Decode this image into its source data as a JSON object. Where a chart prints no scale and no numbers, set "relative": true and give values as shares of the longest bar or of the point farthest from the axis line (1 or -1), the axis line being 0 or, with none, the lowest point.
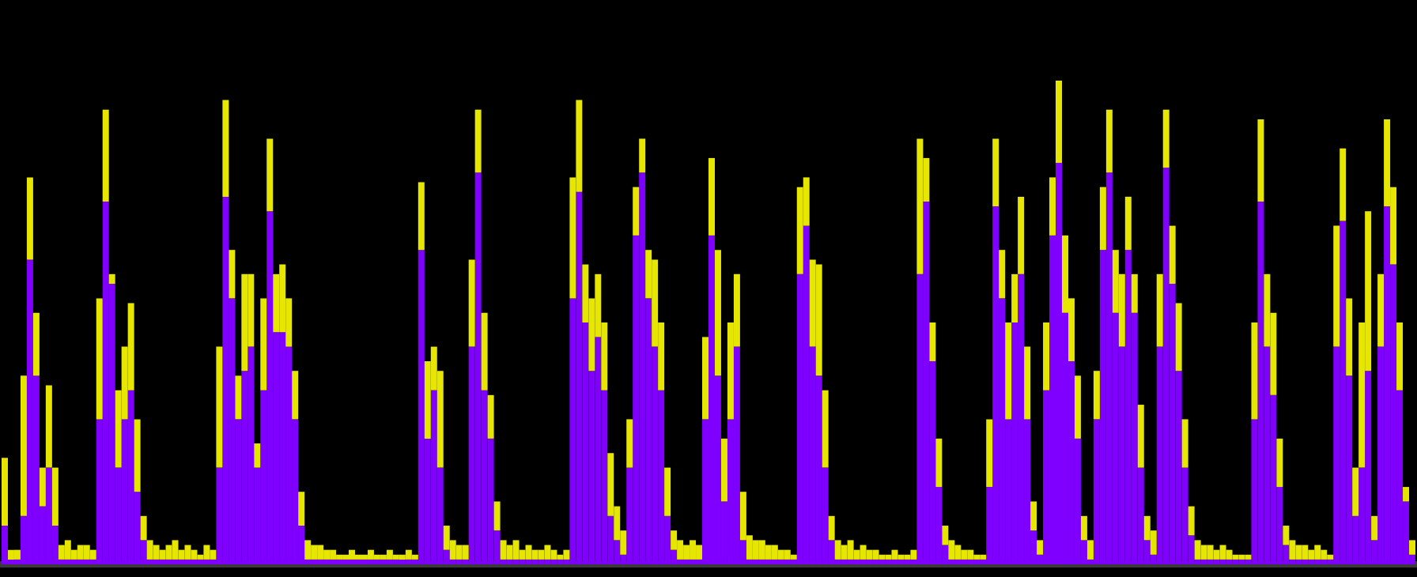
{
  "chart_data": {
    "type": "bar",
    "relative": true,
    "categories": [
      null,
      null,
      null,
      null,
      null,
      null,
      null,
      null,
      null,
      null,
      null,
      null,
      null,
      null,
      null,
      null,
      null,
      null,
      null,
      null,
      null,
      null,
      null,
      null,
      null,
      null,
      null,
      null,
      null,
      null,
      null,
      null,
      null,
      null,
      null,
      null,
      null,
      null,
      null,
      null,
      null,
      null,
      null,
      null,
      null,
      null,
      null,
      null,
      null,
      null,
      null,
      null,
      null,
      null,
      null,
      null,
      null,
      null,
      null,
      null,
      null,
      null,
      null,
      null,
      null,
      null,
      null,
      null,
      null,
      null,
      null,
      null,
      null,
      null,
      null,
      null,
      null,
      null,
      null,
      null,
      null,
      null,
      null,
      null,
      null,
      null,
      null,
      null,
      null,
      null,
      null,
      null,
      null,
      null,
      null,
      null,
      null,
      null,
      null,
      null,
      null,
      null,
      null,
      null,
      null,
      null,
      null,
      null,
      null,
      null,
      null,
      null,
      null,
      null,
      null,
      null,
      null,
      null,
      null,
      null,
      null,
      null,
      null,
      null,
      null,
      null,
      null,
      null,
      null,
      null,
      null,
      null,
      null,
      null,
      null,
      null,
      null,
      null,
      null,
      null,
      null,
      null,
      null,
      null,
      null,
      null,
      null,
      null,
      null,
      null,
      null,
      null,
      null,
      null,
      null,
      null,
      null,
      null,
      null,
      null,
      null,
      null,
      null,
      null,
      null,
      null,
      null,
      null,
      null,
      null,
      null,
      null,
      null,
      null,
      null,
      null,
      null,
      null,
      null,
      null,
      null,
      null,
      null,
      null,
      null,
      null,
      null,
      null,
      null,
      null,
      null,
      null,
      null,
      null,
      null,
      null,
      null,
      null,
      null,
      null,
      null,
      null,
      null,
      null,
      null,
      null,
      null,
      null,
      null,
      null,
      null,
      null,
      null,
      null,
      null,
      null,
      null,
      null,
      null,
      null,
      null,
      null,
      null,
      null
    ],
    "stacked": true,
    "series": [
      {
        "color": "#7f00ff",
        "values": [
          0.08,
          0.01,
          0.01,
          0.1,
          0.63,
          0.39,
          0.12,
          0.2,
          0.08,
          0.01,
          0.01,
          0.01,
          0.01,
          0.01,
          0.01,
          0.3,
          0.75,
          0.58,
          0.2,
          0.3,
          0.36,
          0.15,
          0.05,
          0.01,
          0.01,
          0.01,
          0.01,
          0.01,
          0.01,
          0.01,
          0.01,
          0.01,
          0.01,
          0.01,
          0.2,
          0.76,
          0.55,
          0.3,
          0.4,
          0.45,
          0.2,
          0.36,
          0.73,
          0.48,
          0.48,
          0.45,
          0.3,
          0.08,
          0.01,
          0.01,
          0.01,
          0.01,
          0.01,
          0.01,
          0.01,
          0.01,
          0.01,
          0.01,
          0.01,
          0.01,
          0.01,
          0.01,
          0.01,
          0.01,
          0.01,
          0.01,
          0.65,
          0.26,
          0.36,
          0.2,
          0.03,
          0.01,
          0.01,
          0.01,
          0.45,
          0.81,
          0.36,
          0.26,
          0.07,
          0.01,
          0.01,
          0.01,
          0.01,
          0.01,
          0.01,
          0.01,
          0.01,
          0.01,
          0.01,
          0.01,
          0.55,
          0.77,
          0.5,
          0.4,
          0.47,
          0.36,
          0.1,
          0.05,
          0.02,
          0.2,
          0.68,
          0.81,
          0.55,
          0.45,
          0.36,
          0.1,
          0.03,
          0.01,
          0.01,
          0.01,
          0.01,
          0.3,
          0.68,
          0.39,
          0.13,
          0.3,
          0.45,
          0.05,
          0.01,
          0.01,
          0.01,
          0.01,
          0.01,
          0.01,
          0.01,
          0.01,
          0.6,
          0.7,
          0.45,
          0.39,
          0.2,
          0.05,
          0.01,
          0.01,
          0.01,
          0.01,
          0.01,
          0.01,
          0.01,
          0.01,
          0.01,
          0.01,
          0.01,
          0.01,
          0.01,
          0.6,
          0.75,
          0.42,
          0.16,
          0.04,
          0.01,
          0.01,
          0.01,
          0.01,
          0.01,
          0.01,
          0.16,
          0.74,
          0.55,
          0.3,
          0.5,
          0.6,
          0.3,
          0.07,
          0.02,
          0.36,
          0.68,
          0.83,
          0.52,
          0.42,
          0.26,
          0.05,
          0.01,
          0.3,
          0.65,
          0.81,
          0.52,
          0.45,
          0.65,
          0.52,
          0.2,
          0.05,
          0.02,
          0.45,
          0.82,
          0.58,
          0.4,
          0.2,
          0.06,
          0.01,
          0.01,
          0.01,
          0.01,
          0.01,
          0.01,
          0.01,
          0.01,
          0.01,
          0.3,
          0.75,
          0.45,
          0.35,
          0.16,
          0.04,
          0.01,
          0.01,
          0.01,
          0.01,
          0.01,
          0.01,
          0.01,
          0.45,
          0.71,
          0.39,
          0.1,
          0.2,
          0.4,
          0.05,
          0.45,
          0.74,
          0.62,
          0.36,
          0.13,
          0.02
        ]
      },
      {
        "color": "#e6e600",
        "values": [
          0.14,
          0.02,
          0.02,
          0.29,
          0.17,
          0.13,
          0.08,
          0.17,
          0.12,
          0.03,
          0.04,
          0.02,
          0.03,
          0.03,
          0.02,
          0.25,
          0.19,
          0.02,
          0.16,
          0.15,
          0.18,
          0.15,
          0.05,
          0.04,
          0.03,
          0.02,
          0.03,
          0.04,
          0.02,
          0.03,
          0.02,
          0.01,
          0.03,
          0.02,
          0.25,
          0.2,
          0.1,
          0.09,
          0.2,
          0.15,
          0.05,
          0.19,
          0.15,
          0.12,
          0.14,
          0.1,
          0.1,
          0.07,
          0.04,
          0.03,
          0.03,
          0.02,
          0.02,
          0.01,
          0.01,
          0.02,
          0.01,
          0.01,
          0.02,
          0.01,
          0.01,
          0.02,
          0.01,
          0.01,
          0.02,
          0.01,
          0.14,
          0.16,
          0.09,
          0.2,
          0.05,
          0.04,
          0.03,
          0.03,
          0.18,
          0.13,
          0.16,
          0.09,
          0.06,
          0.04,
          0.03,
          0.04,
          0.02,
          0.03,
          0.02,
          0.02,
          0.03,
          0.02,
          0.01,
          0.02,
          0.25,
          0.19,
          0.12,
          0.15,
          0.13,
          0.14,
          0.13,
          0.07,
          0.05,
          0.1,
          0.1,
          0.07,
          0.1,
          0.18,
          0.14,
          0.1,
          0.04,
          0.04,
          0.03,
          0.04,
          0.03,
          0.17,
          0.16,
          0.26,
          0.13,
          0.2,
          0.15,
          0.1,
          0.05,
          0.04,
          0.04,
          0.03,
          0.03,
          0.02,
          0.02,
          0.01,
          0.18,
          0.1,
          0.18,
          0.23,
          0.16,
          0.05,
          0.04,
          0.03,
          0.04,
          0.02,
          0.03,
          0.02,
          0.02,
          0.01,
          0.01,
          0.02,
          0.01,
          0.01,
          0.02,
          0.28,
          0.09,
          0.08,
          0.1,
          0.04,
          0.04,
          0.03,
          0.02,
          0.02,
          0.01,
          0.01,
          0.14,
          0.14,
          0.1,
          0.2,
          0.1,
          0.16,
          0.15,
          0.06,
          0.03,
          0.14,
          0.12,
          0.17,
          0.16,
          0.13,
          0.13,
          0.05,
          0.04,
          0.1,
          0.13,
          0.13,
          0.13,
          0.15,
          0.11,
          0.08,
          0.13,
          0.05,
          0.05,
          0.15,
          0.12,
          0.12,
          0.14,
          0.1,
          0.06,
          0.04,
          0.03,
          0.03,
          0.02,
          0.03,
          0.02,
          0.01,
          0.01,
          0.01,
          0.2,
          0.17,
          0.15,
          0.17,
          0.1,
          0.04,
          0.04,
          0.03,
          0.03,
          0.02,
          0.03,
          0.02,
          0.01,
          0.25,
          0.15,
          0.16,
          0.1,
          0.3,
          0.33,
          0.05,
          0.15,
          0.18,
          0.16,
          0.14,
          0.03,
          0.03
        ]
      }
    ]
  }
}
